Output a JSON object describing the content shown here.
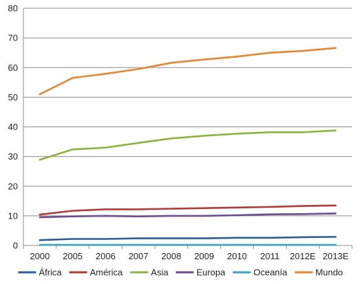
{
  "chart_data": {
    "type": "line",
    "title": "",
    "xlabel": "",
    "ylabel": "",
    "categories": [
      "2000",
      "2005",
      "2006",
      "2007",
      "2008",
      "2009",
      "2010",
      "2011",
      "2012E",
      "2013E"
    ],
    "ylim": [
      0,
      80
    ],
    "yticks": [
      "0",
      "10",
      "20",
      "30",
      "40",
      "50",
      "60",
      "70",
      "80"
    ],
    "grid": true,
    "legend_position": "bottom",
    "series": [
      {
        "name": "África",
        "color": "#2E5C9A",
        "values": [
          1.8,
          2.2,
          2.2,
          2.4,
          2.4,
          2.4,
          2.6,
          2.6,
          2.8,
          2.9
        ]
      },
      {
        "name": "América",
        "color": "#B33A37",
        "values": [
          10.4,
          11.7,
          12.2,
          12.2,
          12.4,
          12.6,
          12.8,
          13.0,
          13.3,
          13.5
        ]
      },
      {
        "name": "Asia",
        "color": "#8DB33F",
        "values": [
          28.9,
          32.4,
          33.0,
          34.6,
          36.1,
          37.0,
          37.7,
          38.2,
          38.2,
          38.8
        ]
      },
      {
        "name": "Europa",
        "color": "#6A4C93",
        "values": [
          9.5,
          9.8,
          10.0,
          9.8,
          10.0,
          10.0,
          10.2,
          10.5,
          10.6,
          10.8
        ]
      },
      {
        "name": "Oceanía",
        "color": "#3AA6C2",
        "values": [
          0.2,
          0.2,
          0.2,
          0.2,
          0.2,
          0.2,
          0.2,
          0.2,
          0.2,
          0.2
        ]
      },
      {
        "name": "Mundo",
        "color": "#E8852F",
        "values": [
          51.0,
          56.5,
          57.9,
          59.5,
          61.6,
          62.7,
          63.7,
          65.0,
          65.6,
          66.6
        ]
      }
    ]
  }
}
